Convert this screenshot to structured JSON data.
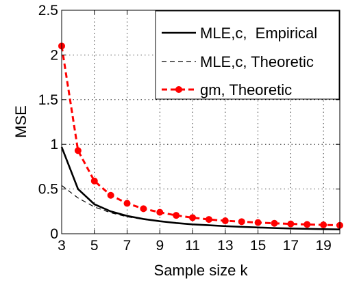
{
  "chart_data": {
    "type": "line",
    "title": "",
    "xlabel": "Sample size k",
    "ylabel": "MSE",
    "xlim": [
      3,
      20
    ],
    "ylim": [
      0,
      2.5
    ],
    "xticks": [
      3,
      5,
      7,
      9,
      11,
      13,
      15,
      17,
      19
    ],
    "xtick_labels": [
      "3",
      "5",
      "7",
      "9",
      "11",
      "13",
      "15",
      "17",
      "19"
    ],
    "yticks": [
      0,
      0.5,
      1,
      1.5,
      2,
      2.5
    ],
    "ytick_labels": [
      "0",
      "0.5",
      "1",
      "1.5",
      "2",
      "2.5"
    ],
    "grid": true,
    "legend_position": "top-right",
    "series": [
      {
        "name": "MLE,c,  Empirical",
        "style": "solid",
        "color": "#000000",
        "marker": "none",
        "x": [
          3,
          4,
          5,
          6,
          7,
          8,
          9,
          10,
          11,
          12,
          13,
          14,
          15,
          16,
          17,
          18,
          19,
          20
        ],
        "values": [
          0.97,
          0.5,
          0.33,
          0.25,
          0.2,
          0.165,
          0.14,
          0.12,
          0.105,
          0.095,
          0.085,
          0.077,
          0.07,
          0.064,
          0.059,
          0.055,
          0.051,
          0.048
        ]
      },
      {
        "name": "MLE,c, Theoretic",
        "style": "dashed",
        "color": "#000000",
        "marker": "none",
        "x": [
          3,
          4,
          5,
          6,
          7,
          8,
          9,
          10,
          11,
          12,
          13,
          14,
          15,
          16,
          17,
          18,
          19,
          20
        ],
        "values": [
          0.54,
          0.4,
          0.3,
          0.235,
          0.19,
          0.16,
          0.138,
          0.12,
          0.106,
          0.095,
          0.086,
          0.078,
          0.071,
          0.065,
          0.06,
          0.056,
          0.052,
          0.049
        ]
      },
      {
        "name": "gm, Theoretic",
        "style": "dashed",
        "color": "#ff0000",
        "marker": "circle",
        "x": [
          3,
          4,
          5,
          6,
          7,
          8,
          9,
          10,
          11,
          12,
          13,
          14,
          15,
          16,
          17,
          18,
          19,
          20
        ],
        "values": [
          2.1,
          0.93,
          0.59,
          0.43,
          0.34,
          0.28,
          0.24,
          0.205,
          0.18,
          0.16,
          0.145,
          0.135,
          0.125,
          0.117,
          0.11,
          0.104,
          0.099,
          0.094
        ]
      }
    ]
  }
}
